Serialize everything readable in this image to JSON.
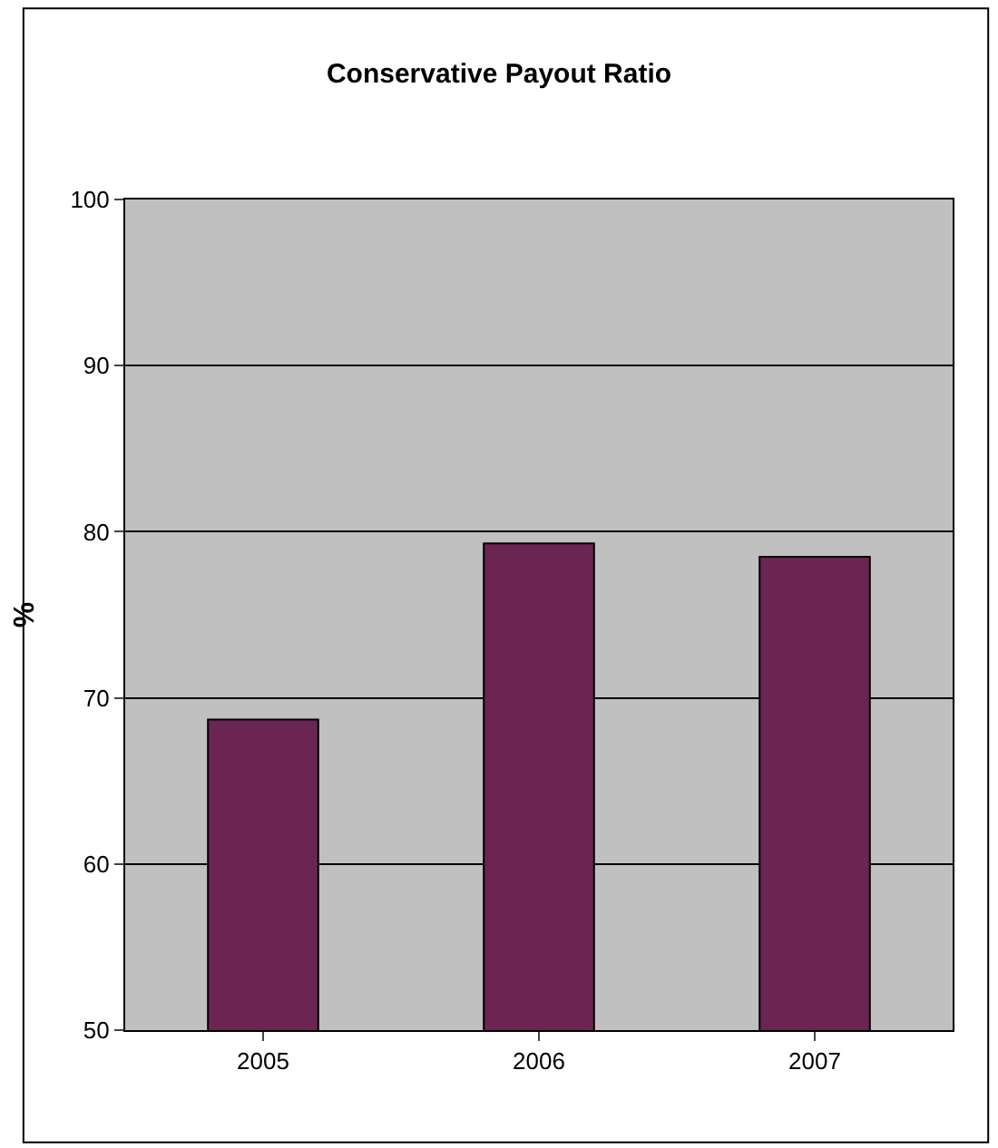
{
  "chart_data": {
    "type": "bar",
    "title": "Conservative Payout Ratio",
    "ylabel": "%",
    "categories": [
      "2005",
      "2006",
      "2007"
    ],
    "values": [
      68.7,
      79.3,
      78.5
    ],
    "color": "#6a2552",
    "ylim": [
      50,
      100
    ],
    "yticks": [
      50,
      60,
      70,
      80,
      90,
      100
    ],
    "grid": "y"
  }
}
